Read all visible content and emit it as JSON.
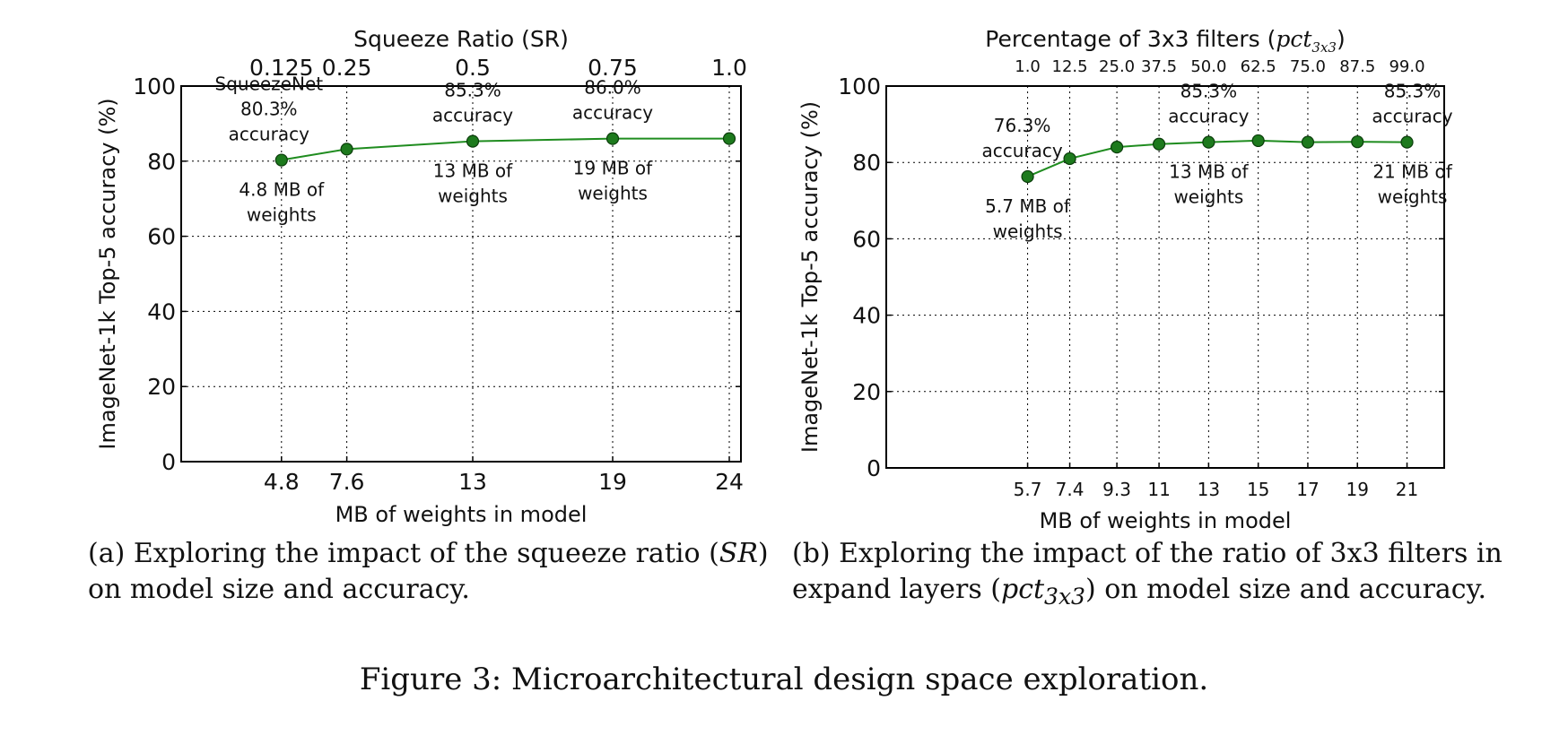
{
  "figure_caption": "Figure 3: Microarchitectural design space exploration.",
  "chart_data": [
    {
      "type": "line",
      "panel_caption": "(a) Exploring the impact of the squeeze ratio (SR) on model size and accuracy.",
      "panel_caption_parts": [
        "(a) Exploring the impact of the squeeze ratio (",
        "SR",
        ") on model size and accuracy."
      ],
      "xlabel": "MB of weights in model",
      "ylabel": "ImageNet-1k Top-5 accuracy (%)",
      "top_xlabel": "Squeeze Ratio (SR)",
      "xlim": [
        0.5,
        24.5
      ],
      "ylim": [
        0,
        100
      ],
      "yticks": [
        0,
        20,
        40,
        60,
        80,
        100
      ],
      "grid": true,
      "color": "#1f8c1f",
      "marker_color": "#1d7a1d",
      "x": [
        4.8,
        7.6,
        13,
        19,
        24
      ],
      "xtick_labels": [
        "4.8",
        "7.6",
        "13",
        "19",
        "24"
      ],
      "top_tick_labels": [
        "0.125",
        "0.25",
        "0.5",
        "0.75",
        "1.0"
      ],
      "y": [
        80.3,
        83.2,
        85.3,
        86.0,
        86.0
      ],
      "annotations": [
        {
          "lines": [
            "SqueezeNet",
            "80.3%",
            "accuracy"
          ],
          "x": 4.8,
          "pos": "above"
        },
        {
          "lines": [
            "4.8 MB of",
            "weights"
          ],
          "x": 4.8,
          "pos": "below"
        },
        {
          "lines": [
            "85.3%",
            "accuracy"
          ],
          "x": 13,
          "pos": "above"
        },
        {
          "lines": [
            "13 MB of",
            "weights"
          ],
          "x": 13,
          "pos": "below"
        },
        {
          "lines": [
            "86.0%",
            "accuracy"
          ],
          "x": 19,
          "pos": "above"
        },
        {
          "lines": [
            "19 MB of",
            "weights"
          ],
          "x": 19,
          "pos": "below"
        }
      ]
    },
    {
      "type": "line",
      "panel_caption": "(b) Exploring the impact of the ratio of 3x3 filters in expand layers (pct3x3) on model size and accuracy.",
      "panel_caption_parts": [
        "(b) Exploring the impact of the ratio of 3x3 filters in expand layers (",
        "pct",
        "3x3",
        ") on model size and accuracy."
      ],
      "xlabel": "MB of weights in model",
      "ylabel": "ImageNet-1k Top-5 accuracy (%)",
      "top_xlabel": "Percentage of 3x3 filters (",
      "top_xlabel_math": "pct",
      "top_xlabel_sub": "3x3",
      "top_xlabel_close": ")",
      "xlim": [
        0,
        22.5
      ],
      "ylim": [
        0,
        100
      ],
      "yticks": [
        0,
        20,
        40,
        60,
        80,
        100
      ],
      "grid": true,
      "color": "#1f8c1f",
      "marker_color": "#1d7a1d",
      "x": [
        5.7,
        7.4,
        9.3,
        11,
        13,
        15,
        17,
        19,
        21
      ],
      "xtick_labels": [
        "5.7",
        "7.4",
        "9.3",
        "11",
        "13",
        "15",
        "17",
        "19",
        "21"
      ],
      "top_tick_labels": [
        "1.0",
        "12.5",
        "25.0",
        "37.5",
        "50.0",
        "62.5",
        "75.0",
        "87.5",
        "99.0"
      ],
      "y": [
        76.3,
        81.0,
        84.0,
        84.8,
        85.3,
        85.7,
        85.3,
        85.4,
        85.3
      ],
      "annotations": [
        {
          "lines": [
            "76.3%",
            "accuracy"
          ],
          "x": 5.7,
          "pos": "above"
        },
        {
          "lines": [
            "5.7 MB of",
            "weights"
          ],
          "x": 5.7,
          "pos": "below"
        },
        {
          "lines": [
            "85.3%",
            "accuracy"
          ],
          "x": 13,
          "pos": "above"
        },
        {
          "lines": [
            "13 MB of",
            "weights"
          ],
          "x": 13,
          "pos": "below"
        },
        {
          "lines": [
            "85.3%",
            "accuracy"
          ],
          "x": 21,
          "pos": "above"
        },
        {
          "lines": [
            "21 MB of",
            "weights"
          ],
          "x": 21,
          "pos": "below"
        }
      ]
    }
  ]
}
